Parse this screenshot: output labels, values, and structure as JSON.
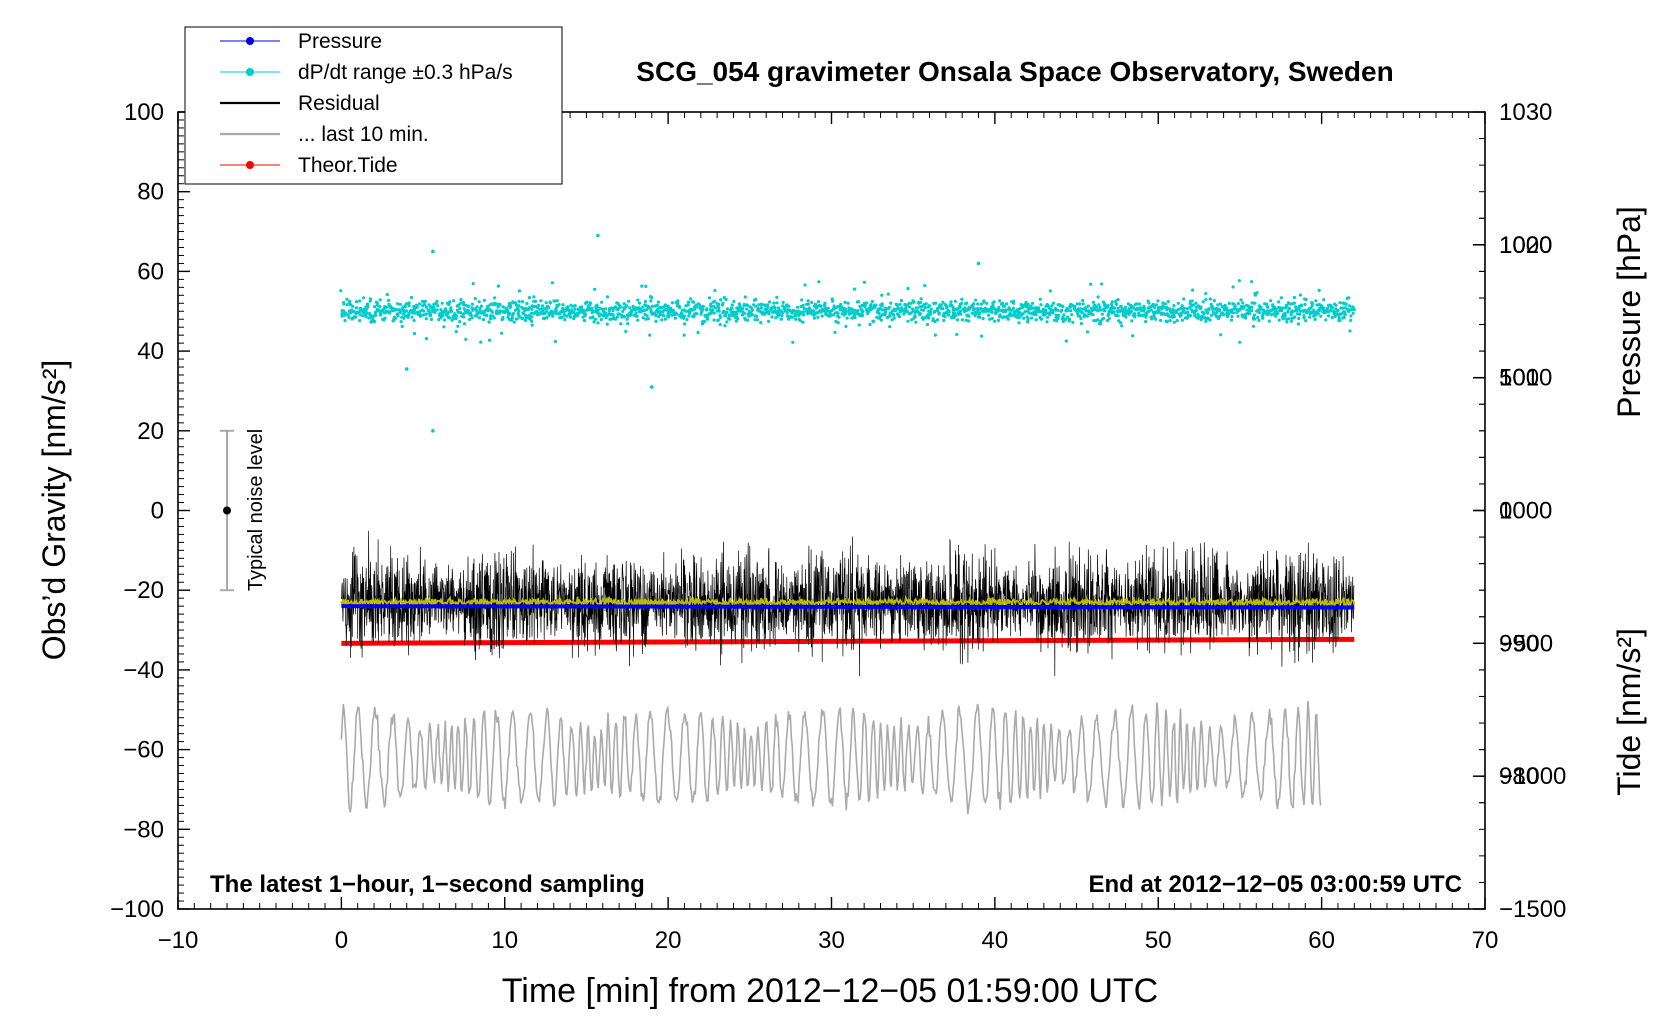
{
  "chart_data": {
    "type": "line",
    "title": "SCG_054 gravimeter Onsala Space Observatory, Sweden",
    "xlabel": "Time [min] from 2012−12−05 01:59:00 UTC",
    "ylabel_left": "Obs’d Gravity [nm/s²]",
    "ylabel_right_pressure": "Pressure [hPa]",
    "ylabel_right_tide": "Tide [nm/s²]",
    "xlim": [
      -10,
      70
    ],
    "ylim": [
      -100,
      100
    ],
    "pressure_axis_range": [
      970,
      1030
    ],
    "tide_axis_range": [
      -1500,
      1500
    ],
    "x_ticks": [
      "−10",
      "0",
      "10",
      "20",
      "30",
      "40",
      "50",
      "60",
      "70"
    ],
    "x_tick_values": [
      -10,
      0,
      10,
      20,
      30,
      40,
      50,
      60,
      70
    ],
    "y_ticks": [
      "100",
      "80",
      "60",
      "40",
      "20",
      "0",
      "−20",
      "−40",
      "−60",
      "−80",
      "−100"
    ],
    "y_tick_values": [
      100,
      80,
      60,
      40,
      20,
      0,
      -20,
      -40,
      -60,
      -80,
      -100
    ],
    "pressure_ticks": [
      "1030",
      "1020",
      "1010",
      "1000",
      "990",
      "980"
    ],
    "pressure_tick_values": [
      1030,
      1020,
      1010,
      1000,
      990,
      980
    ],
    "tide_ticks": [
      "1000",
      "500",
      "0",
      "−500",
      "−1000",
      "−1500"
    ],
    "tide_tick_values": [
      1000,
      500,
      0,
      -500,
      -1000,
      -1500
    ],
    "legend": [
      {
        "label": "Pressure",
        "color": "#0000ee",
        "marker": true
      },
      {
        "label": "dP/dt range ±0.3 hPa/s",
        "color": "#00cccc",
        "marker": true
      },
      {
        "label": "Residual",
        "color": "#000000",
        "marker": false
      },
      {
        "label": "... last 10 min.",
        "color": "#aaaaaa",
        "marker": false
      },
      {
        "label": "Theor.Tide",
        "color": "#ff0000",
        "marker": true
      }
    ],
    "legend_position": "top-left",
    "annotation_left": "The latest 1−hour, 1−second sampling",
    "annotation_right": "End at 2012−12−05 03:00:59 UTC",
    "noise_bar": {
      "label": "Typical noise level",
      "x": -7,
      "center": 0,
      "low": -20,
      "high": 20
    },
    "series": [
      {
        "name": "Pressure",
        "color": "#0000ee",
        "x_range": [
          0,
          62
        ],
        "y_start": 992.8,
        "y_end": 992.7
      },
      {
        "name": "dP/dt range",
        "color": "#00cccc",
        "x_range": [
          0,
          62
        ],
        "center": 50,
        "spread": 4
      },
      {
        "name": "Residual",
        "color": "#000000",
        "x_range": [
          0,
          62
        ],
        "center": -23,
        "amplitude": 12
      },
      {
        "name": "Residual running mean",
        "color": "#bbbb00",
        "x_range": [
          0,
          62
        ],
        "center": -23
      },
      {
        "name": "... last 10 min.",
        "color": "#aaaaaa",
        "x_range": [
          0,
          60
        ],
        "center": -62,
        "amplitude": 12
      },
      {
        "name": "Theor.Tide",
        "color": "#ff0000",
        "x_range": [
          0,
          62
        ],
        "y_start": -500,
        "y_end": -485
      }
    ]
  }
}
